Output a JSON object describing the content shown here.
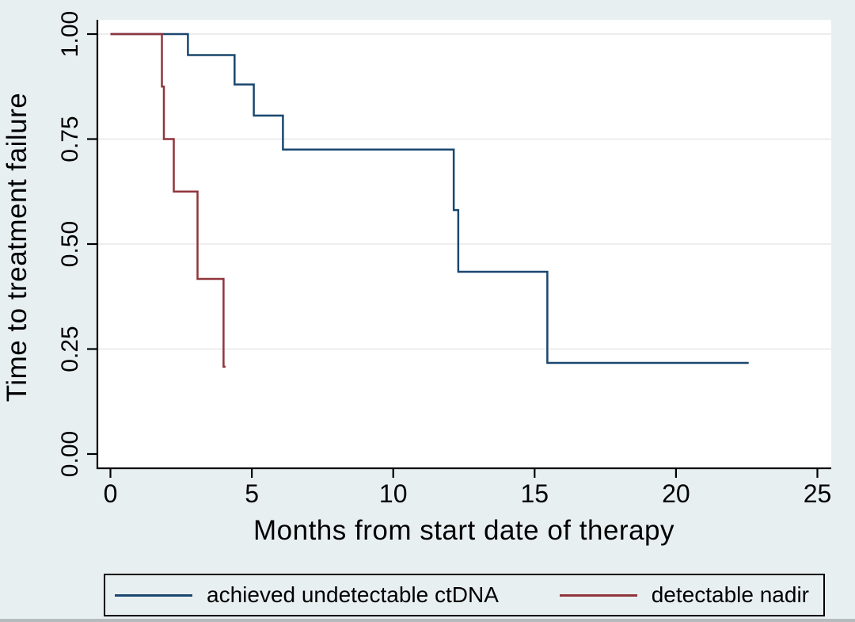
{
  "page": {
    "background_color": "#e8eff1",
    "plot_background_color": "#ffffff",
    "gridline_color": "#e7e7e7",
    "axis_color": "#000000"
  },
  "chart_data": {
    "type": "line",
    "subtype": "kaplan-meier-step",
    "title": "",
    "xlabel": "Months from start date of therapy",
    "ylabel": "Time to treatment failure",
    "xlim": [
      0,
      25
    ],
    "ylim": [
      0.0,
      1.0
    ],
    "grid": "horizontal-only",
    "gridlines_y": [
      0.25,
      0.5,
      0.75,
      1.0
    ],
    "legend_position": "bottom",
    "xticks": {
      "values": [
        0,
        5,
        10,
        15,
        20,
        25
      ],
      "labels": [
        "0",
        "5",
        "10",
        "15",
        "20",
        "25"
      ]
    },
    "yticks": {
      "values": [
        0,
        0.25,
        0.5,
        0.75,
        1.0
      ],
      "labels": [
        "0.00",
        "0.25",
        "0.50",
        "0.75",
        "1.00"
      ]
    },
    "series": [
      {
        "name": "achieved undetectable ctDNA",
        "color": "#1a476f",
        "steps": [
          [
            0,
            1.0
          ],
          [
            2.74,
            0.95
          ],
          [
            4.39,
            0.88
          ],
          [
            5.07,
            0.806
          ],
          [
            6.1,
            0.725
          ],
          [
            12.14,
            0.581
          ],
          [
            12.3,
            0.434
          ],
          [
            15.45,
            0.217
          ]
        ],
        "end_time": 22.57
      },
      {
        "name": "detectable nadir",
        "color": "#90353b",
        "steps": [
          [
            0,
            1.0
          ],
          [
            1.82,
            0.875
          ],
          [
            1.89,
            0.75
          ],
          [
            2.24,
            0.625
          ],
          [
            3.08,
            0.417
          ],
          [
            4.0,
            0.208
          ]
        ],
        "end_time": 4.07
      }
    ]
  }
}
